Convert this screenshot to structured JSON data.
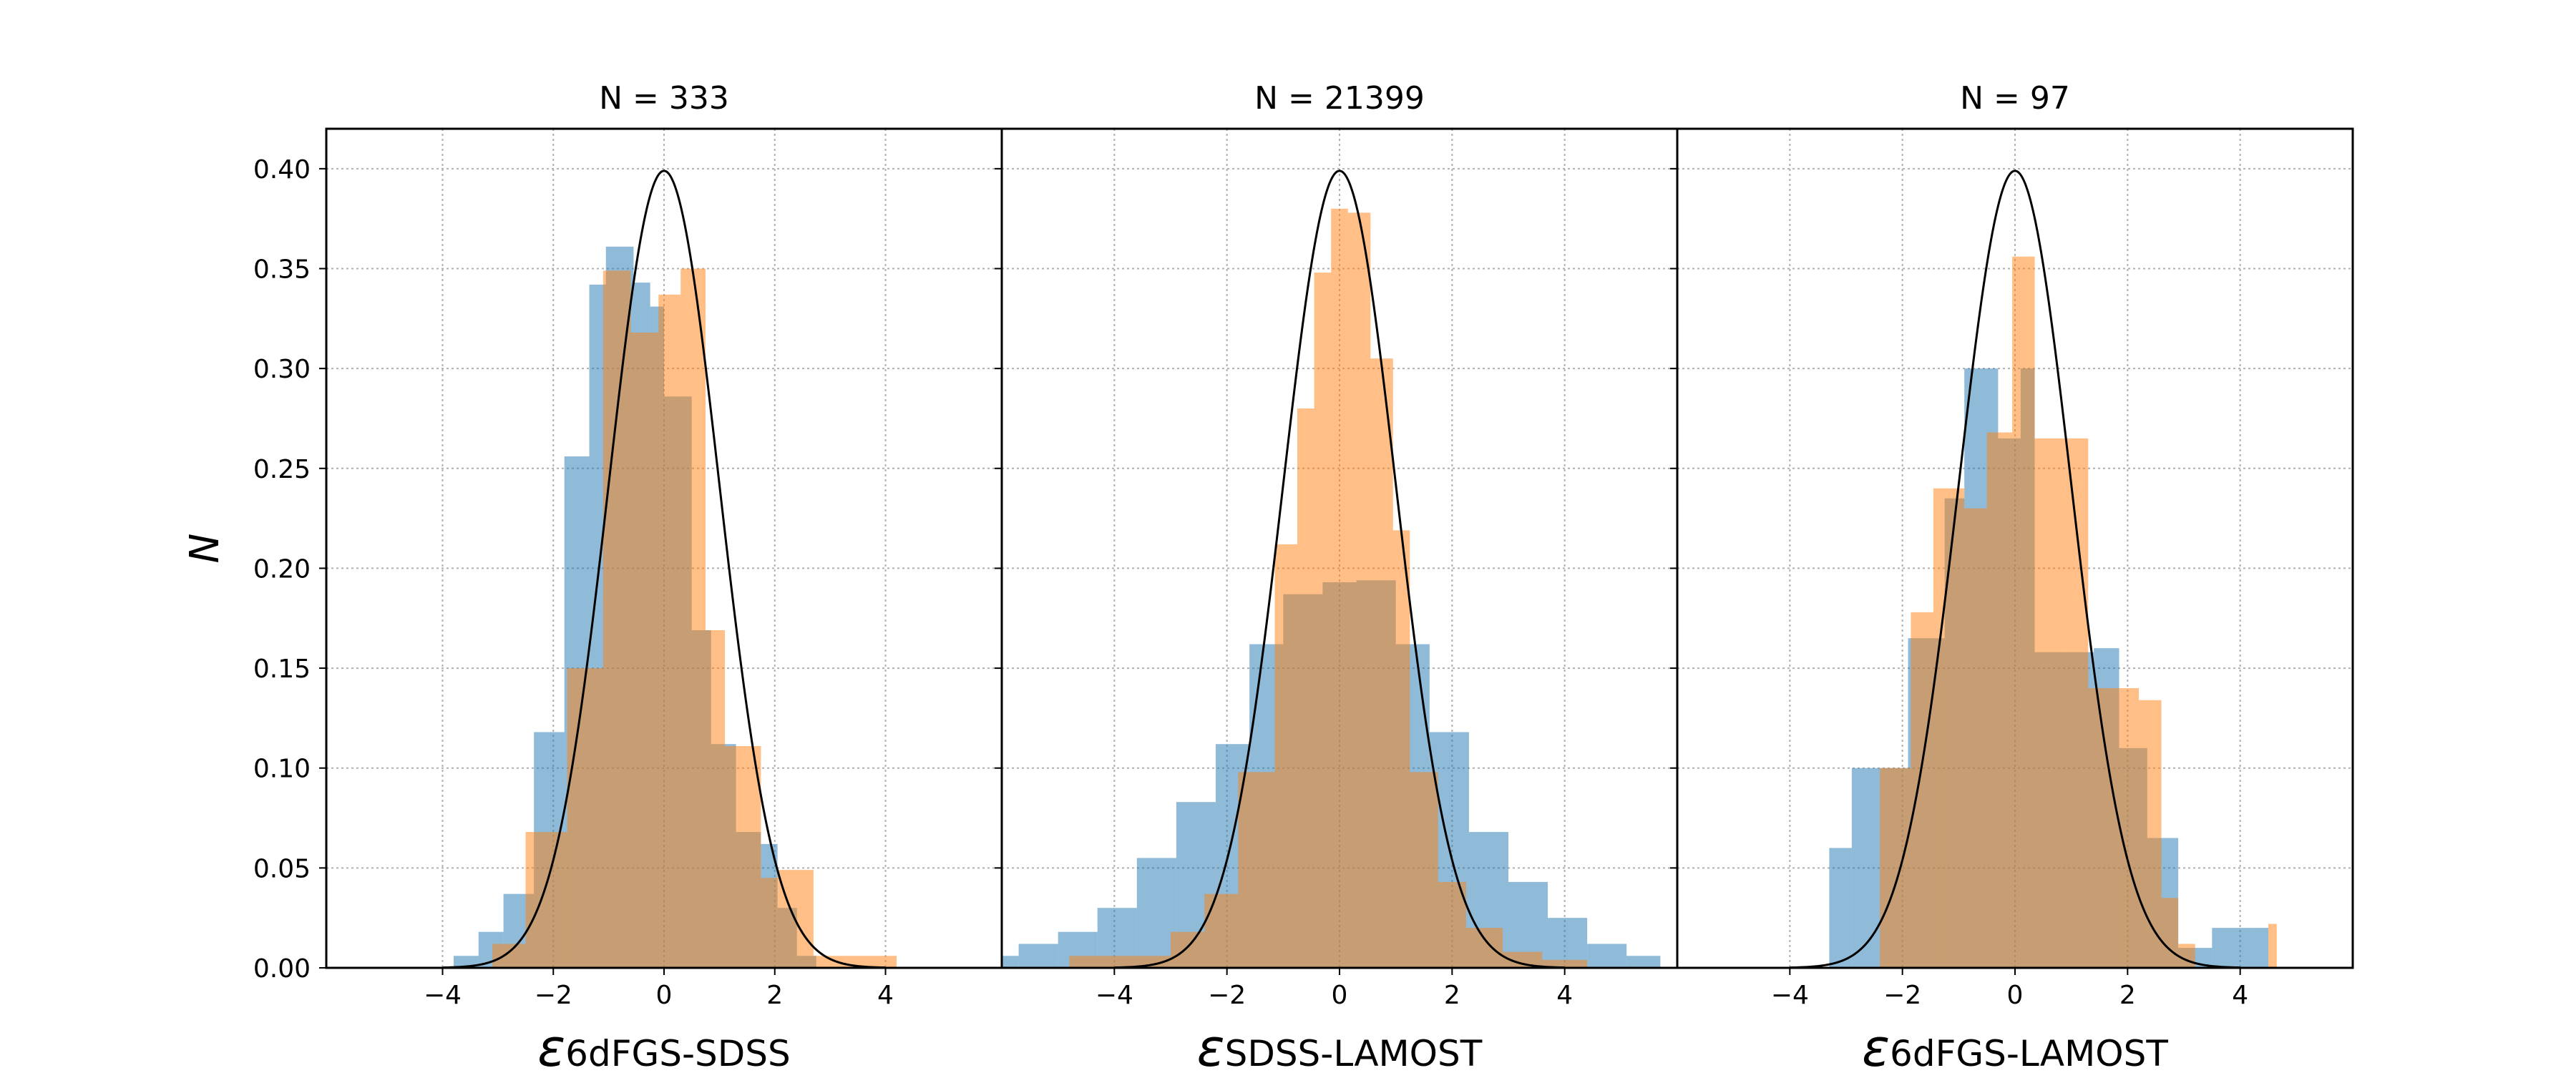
{
  "colors": {
    "blue": "#1f77b4",
    "orange": "#ff7f0e",
    "curve": "#000000",
    "grid": "#b0b0b0"
  },
  "chart_data": [
    {
      "type": "histogram",
      "title": "N = 333",
      "xlabel_main": "ε",
      "xlabel_sub": "6dFGS-SDSS",
      "ylabel": "N",
      "xlim": [
        -6.1,
        6.1
      ],
      "ylim": [
        0,
        0.42
      ],
      "xticks": [
        -4,
        -2,
        0,
        2,
        4
      ],
      "yticks": [
        0.0,
        0.05,
        0.1,
        0.15,
        0.2,
        0.25,
        0.3,
        0.35,
        0.4
      ],
      "grid": true,
      "series": [
        {
          "color": "blue",
          "bins": [
            [
              -3.8,
              -3.35,
              0.006
            ],
            [
              -3.35,
              -2.9,
              0.018
            ],
            [
              -2.9,
              -2.35,
              0.037
            ],
            [
              -2.35,
              -1.8,
              0.118
            ],
            [
              -1.8,
              -1.35,
              0.256
            ],
            [
              -1.35,
              -1.05,
              0.342
            ],
            [
              -1.05,
              -0.55,
              0.361
            ],
            [
              -0.55,
              -0.25,
              0.343
            ],
            [
              -0.25,
              0.0,
              0.331
            ],
            [
              0.0,
              0.5,
              0.286
            ],
            [
              0.5,
              0.85,
              0.169
            ],
            [
              0.85,
              1.3,
              0.112
            ],
            [
              1.3,
              1.75,
              0.068
            ],
            [
              1.75,
              2.05,
              0.062
            ],
            [
              2.05,
              2.4,
              0.03
            ],
            [
              2.4,
              2.75,
              0.006
            ]
          ]
        },
        {
          "color": "orange",
          "bins": [
            [
              -3.1,
              -2.5,
              0.012
            ],
            [
              -2.5,
              -1.75,
              0.068
            ],
            [
              -1.75,
              -1.1,
              0.15
            ],
            [
              -1.1,
              -0.6,
              0.349
            ],
            [
              -0.6,
              -0.1,
              0.318
            ],
            [
              -0.1,
              0.3,
              0.337
            ],
            [
              0.3,
              0.75,
              0.35
            ],
            [
              0.75,
              1.1,
              0.169
            ],
            [
              1.1,
              1.75,
              0.111
            ],
            [
              1.75,
              2.05,
              0.045
            ],
            [
              2.05,
              2.7,
              0.049
            ],
            [
              2.7,
              3.3,
              0.006
            ],
            [
              3.3,
              4.2,
              0.006
            ]
          ]
        }
      ]
    },
    {
      "type": "histogram",
      "title": "N = 21399",
      "xlabel_main": "ε",
      "xlabel_sub": "SDSS-LAMOST",
      "xlim": [
        -6.0,
        6.0
      ],
      "ylim": [
        0,
        0.42
      ],
      "xticks": [
        -4,
        -2,
        0,
        2,
        4
      ],
      "grid": true,
      "series": [
        {
          "color": "blue",
          "bins": [
            [
              -6.0,
              -5.7,
              0.006
            ],
            [
              -5.7,
              -5.0,
              0.012
            ],
            [
              -5.0,
              -4.3,
              0.018
            ],
            [
              -4.3,
              -3.6,
              0.03
            ],
            [
              -3.6,
              -2.9,
              0.055
            ],
            [
              -2.9,
              -2.2,
              0.083
            ],
            [
              -2.2,
              -1.6,
              0.112
            ],
            [
              -1.6,
              -1.0,
              0.162
            ],
            [
              -1.0,
              -0.3,
              0.187
            ],
            [
              -0.3,
              0.3,
              0.193
            ],
            [
              0.3,
              1.0,
              0.194
            ],
            [
              1.0,
              1.6,
              0.162
            ],
            [
              1.6,
              2.3,
              0.118
            ],
            [
              2.3,
              3.0,
              0.068
            ],
            [
              3.0,
              3.7,
              0.043
            ],
            [
              3.7,
              4.4,
              0.025
            ],
            [
              4.4,
              5.1,
              0.012
            ],
            [
              5.1,
              5.7,
              0.006
            ]
          ]
        },
        {
          "color": "orange",
          "bins": [
            [
              -4.8,
              -3.9,
              0.006
            ],
            [
              -3.9,
              -3.0,
              0.006
            ],
            [
              -3.0,
              -2.4,
              0.018
            ],
            [
              -2.4,
              -1.8,
              0.037
            ],
            [
              -1.8,
              -1.15,
              0.098
            ],
            [
              -1.15,
              -0.75,
              0.212
            ],
            [
              -0.75,
              -0.45,
              0.28
            ],
            [
              -0.45,
              -0.15,
              0.348
            ],
            [
              -0.15,
              0.15,
              0.38
            ],
            [
              0.15,
              0.55,
              0.378
            ],
            [
              0.55,
              0.95,
              0.305
            ],
            [
              0.95,
              1.25,
              0.219
            ],
            [
              1.25,
              1.75,
              0.098
            ],
            [
              1.75,
              2.25,
              0.043
            ],
            [
              2.25,
              2.9,
              0.02
            ],
            [
              2.9,
              3.6,
              0.008
            ],
            [
              3.6,
              4.4,
              0.004
            ]
          ]
        }
      ]
    },
    {
      "type": "histogram",
      "title": "N = 97",
      "xlabel_main": "ε",
      "xlabel_sub": "6dFGS-LAMOST",
      "xlim": [
        -6.0,
        6.0
      ],
      "ylim": [
        0,
        0.42
      ],
      "xticks": [
        -4,
        -2,
        0,
        2,
        4
      ],
      "grid": true,
      "series": [
        {
          "color": "blue",
          "bins": [
            [
              -3.3,
              -2.9,
              0.06
            ],
            [
              -2.9,
              -1.9,
              0.1
            ],
            [
              -1.9,
              -1.25,
              0.165
            ],
            [
              -1.25,
              -0.9,
              0.235
            ],
            [
              -0.9,
              -0.3,
              0.3
            ],
            [
              -0.3,
              0.1,
              0.265
            ],
            [
              0.1,
              0.35,
              0.3
            ],
            [
              0.35,
              1.4,
              0.158
            ],
            [
              1.4,
              1.85,
              0.16
            ],
            [
              1.85,
              2.35,
              0.11
            ],
            [
              2.35,
              2.9,
              0.065
            ],
            [
              2.9,
              3.5,
              0.01
            ],
            [
              3.5,
              4.2,
              0.02
            ],
            [
              4.2,
              4.5,
              0.02
            ]
          ]
        },
        {
          "color": "orange",
          "bins": [
            [
              -2.4,
              -1.85,
              0.1
            ],
            [
              -1.85,
              -1.45,
              0.178
            ],
            [
              -1.45,
              -0.9,
              0.24
            ],
            [
              -0.9,
              -0.5,
              0.23
            ],
            [
              -0.5,
              -0.05,
              0.268
            ],
            [
              -0.05,
              0.35,
              0.356
            ],
            [
              0.35,
              0.9,
              0.265
            ],
            [
              0.9,
              1.3,
              0.265
            ],
            [
              1.3,
              2.2,
              0.14
            ],
            [
              2.2,
              2.6,
              0.134
            ],
            [
              2.6,
              2.9,
              0.035
            ],
            [
              2.9,
              3.2,
              0.012
            ],
            [
              3.2,
              4.5,
              0.0
            ],
            [
              4.5,
              4.65,
              0.022
            ]
          ]
        }
      ]
    }
  ]
}
